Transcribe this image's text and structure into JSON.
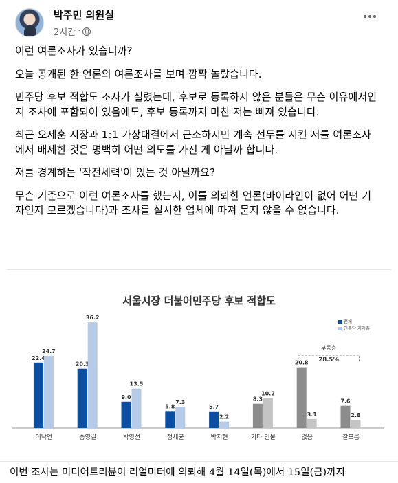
{
  "post": {
    "author": "박주민 의원실",
    "time": "2시간",
    "paragraphs": [
      "이런 여론조사가 있습니까?",
      "오늘 공개된 한 언론의 여론조사를 보며 깜짝 놀랐습니다.",
      "민주당 후보 적합도 조사가 실렸는데, 후보로 등록하지 않은 분들은 무슨 이유에서인지 조사에 포함되어 있음에도, 후보 등록까지 마친 저는 빠져 있습니다.",
      "최근 오세훈 시장과 1:1 가상대결에서 근소하지만 계속 선두를 지킨 저를 여론조사에서 배제한 것은 명백히 어떤 의도를 가진 게 아닐까 합니다.",
      "저를 경계하는 '작전세력'이 있는 것 아닐까요?",
      "무슨 기준으로 이런 여론조사를 했는지, 이를 의뢰한 언론(바이라인이 없어 어떤 기자인지 모르겠습니다)과 조사를 실시한 업체에 따져 묻지 않을 수 없습니다."
    ],
    "footer_text": "이번 조사는 미디어트리뷴이 리얼미터에 의뢰해 4월 14일(목)에서 15일(금)까지"
  },
  "chart_data": {
    "type": "bar",
    "title": "서울시장 더불어민주당 후보 적합도",
    "categories": [
      "이낙연",
      "송영길",
      "박영선",
      "정세균",
      "박지현",
      "기타 인물",
      "없음",
      "잘모름"
    ],
    "series": [
      {
        "name": "전체",
        "values": [
          22.4,
          20.3,
          9.0,
          5.8,
          5.7,
          8.3,
          20.8,
          7.6
        ],
        "color": "#0b4fa3",
        "alt_color": "#8c8c8c"
      },
      {
        "name": "민주당 지지층",
        "values": [
          24.7,
          36.2,
          13.5,
          7.3,
          2.2,
          10.2,
          3.1,
          2.8
        ],
        "color": "#b5cbe8",
        "alt_color": "#c4c4c4"
      }
    ],
    "labels": [
      [
        "22.4",
        "20.3",
        "9.0",
        "5.8",
        "5.7",
        "8.3",
        "20.8",
        "7.6"
      ],
      [
        "24.7",
        "36.2",
        "13.5",
        "7.3",
        "2.2",
        "10.2",
        "3.1",
        "2.8"
      ]
    ],
    "gray_categories": [
      "기타 인물",
      "없음",
      "잘모름"
    ],
    "annotation": {
      "label": "부동층",
      "value": "28.5%"
    },
    "ylim": [
      0,
      40
    ]
  }
}
